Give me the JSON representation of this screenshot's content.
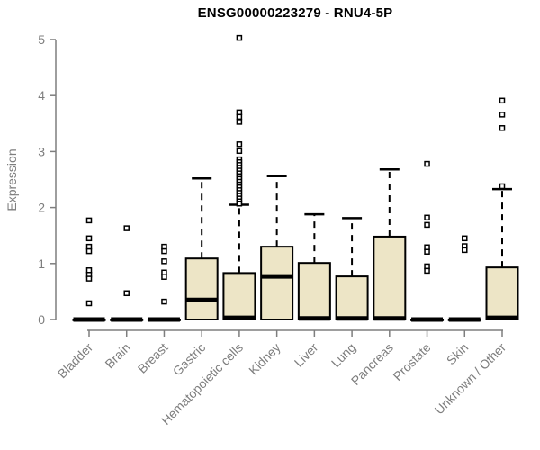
{
  "page": {
    "background": "#ffffff"
  },
  "chart_data": {
    "type": "boxplot",
    "title": "ENSG00000223279 - RNU4-5P",
    "ylabel": "Expression",
    "xlabel": "",
    "ylim": [
      0,
      5
    ],
    "yticks": [
      0,
      1,
      2,
      3,
      4,
      5
    ],
    "grid": false,
    "legend_position": "none",
    "colors": {
      "box_fill": "#ede5c6",
      "box_border": "#000000",
      "median": "#000000",
      "whisker": "#000000",
      "outlier_stroke": "#000000",
      "outlier_fill": "#ffffff",
      "axis": "#7e7e7e",
      "tick_label": "#7e7e7e",
      "title": "#000000"
    },
    "categories": [
      "Bladder",
      "Brain",
      "Breast",
      "Gastric",
      "Hematopoietic cells",
      "Kidney",
      "Liver",
      "Lung",
      "Pancreas",
      "Prostate",
      "Skin",
      "Unknown / Other"
    ],
    "boxes": [
      {
        "category": "Bladder",
        "q1": 0,
        "median": 0,
        "q3": 0,
        "whisker_low": 0,
        "whisker_high": 0,
        "outliers": [
          1.77,
          1.45,
          1.3,
          1.22,
          0.88,
          0.8,
          0.73,
          0.29
        ]
      },
      {
        "category": "Brain",
        "q1": 0,
        "median": 0,
        "q3": 0,
        "whisker_low": 0,
        "whisker_high": 0,
        "outliers": [
          1.63,
          0.47
        ]
      },
      {
        "category": "Breast",
        "q1": 0,
        "median": 0,
        "q3": 0,
        "whisker_low": 0,
        "whisker_high": 0,
        "outliers": [
          1.3,
          1.22,
          1.04,
          0.84,
          0.76,
          0.32
        ]
      },
      {
        "category": "Gastric",
        "q1": 0,
        "median": 0.35,
        "q3": 1.09,
        "whisker_low": 0,
        "whisker_high": 2.52,
        "outliers": []
      },
      {
        "category": "Hematopoietic cells",
        "q1": 0,
        "median": 0.03,
        "q3": 0.83,
        "whisker_low": 0,
        "whisker_high": 2.05,
        "outliers": [
          5.03,
          3.7,
          3.62,
          3.53,
          3.13,
          3.01,
          2.86,
          2.81,
          2.76,
          2.71,
          2.66,
          2.61,
          2.56,
          2.51,
          2.46,
          2.41,
          2.36,
          2.31,
          2.26,
          2.21,
          2.16,
          2.11,
          2.07
        ]
      },
      {
        "category": "Kidney",
        "q1": 0,
        "median": 0.77,
        "q3": 1.3,
        "whisker_low": 0,
        "whisker_high": 2.56,
        "outliers": []
      },
      {
        "category": "Liver",
        "q1": 0,
        "median": 0.02,
        "q3": 1.01,
        "whisker_low": 0,
        "whisker_high": 1.88,
        "outliers": []
      },
      {
        "category": "Lung",
        "q1": 0,
        "median": 0.02,
        "q3": 0.77,
        "whisker_low": 0,
        "whisker_high": 1.81,
        "outliers": []
      },
      {
        "category": "Pancreas",
        "q1": 0,
        "median": 0.02,
        "q3": 1.48,
        "whisker_low": 0,
        "whisker_high": 2.68,
        "outliers": []
      },
      {
        "category": "Prostate",
        "q1": 0,
        "median": 0,
        "q3": 0,
        "whisker_low": 0,
        "whisker_high": 0,
        "outliers": [
          2.78,
          1.82,
          1.69,
          1.29,
          1.21,
          0.95,
          0.87
        ]
      },
      {
        "category": "Skin",
        "q1": 0,
        "median": 0,
        "q3": 0,
        "whisker_low": 0,
        "whisker_high": 0,
        "outliers": [
          1.45,
          1.31,
          1.24
        ]
      },
      {
        "category": "Unknown / Other",
        "q1": 0,
        "median": 0.03,
        "q3": 0.93,
        "whisker_low": 0,
        "whisker_high": 2.33,
        "outliers": [
          3.91,
          3.66,
          3.42,
          2.38
        ]
      }
    ]
  }
}
